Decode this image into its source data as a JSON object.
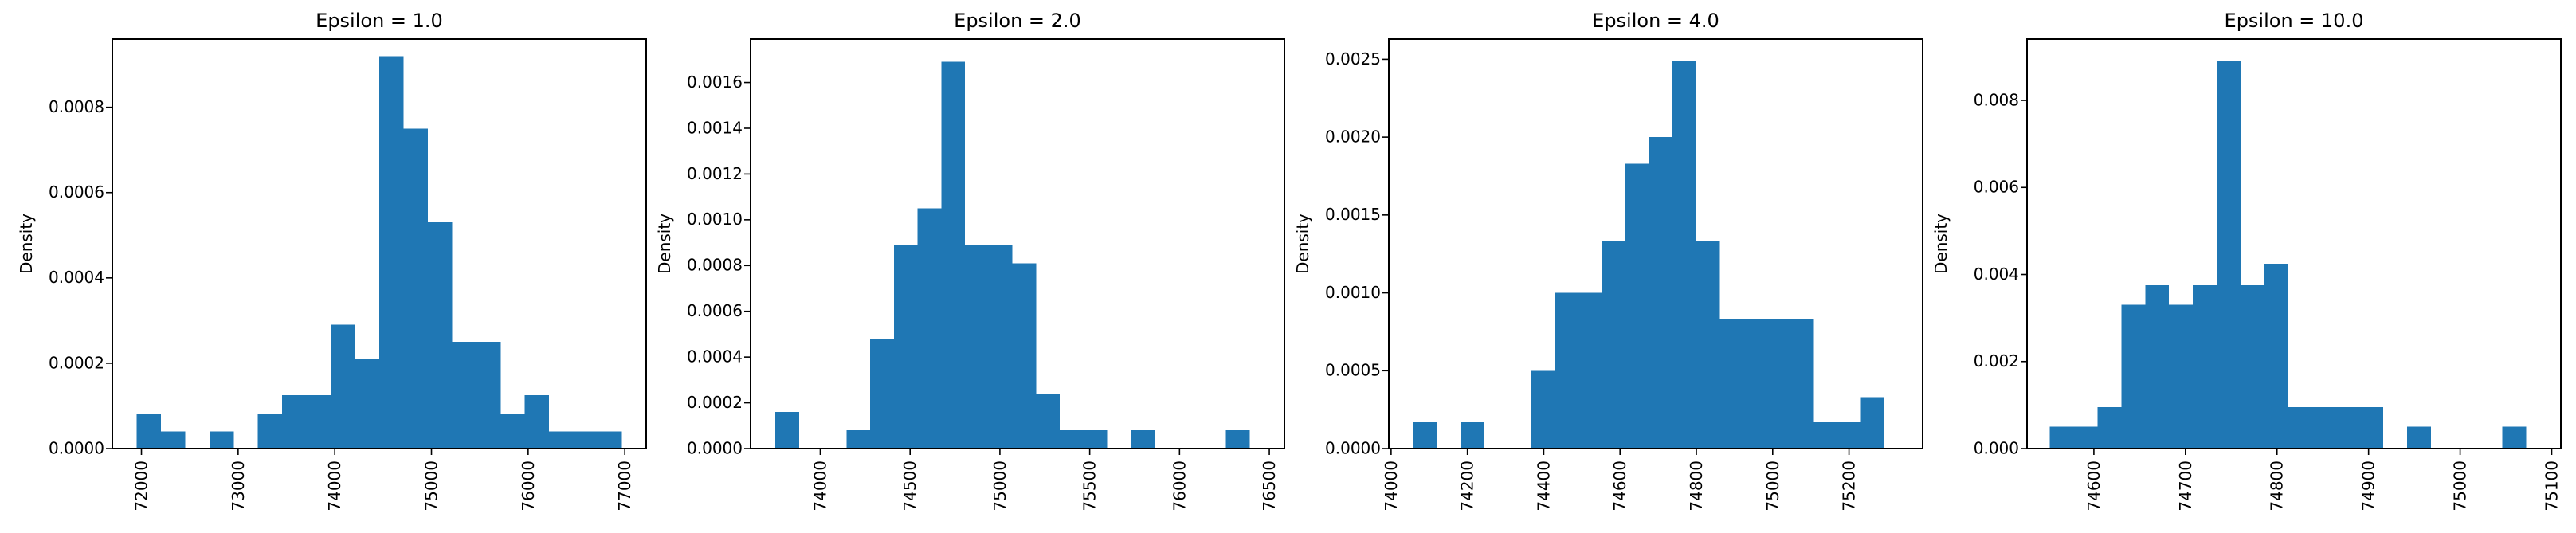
{
  "figure": {
    "background": "#ffffff",
    "bar_color": "#1f77b4",
    "axis_color": "#000000",
    "text_color": "#000000"
  },
  "chart_data": [
    {
      "type": "bar",
      "title": "Epsilon = 1.0",
      "ylabel": "Density",
      "xlabel": "",
      "grid": false,
      "legend": null,
      "xlim": [
        71699,
        77221
      ],
      "ylim": [
        0,
        0.00096
      ],
      "xticks": [
        72000,
        73000,
        74000,
        75000,
        76000,
        77000
      ],
      "xtick_labels": [
        "72000",
        "73000",
        "74000",
        "75000",
        "76000",
        "77000"
      ],
      "yticks": [
        0.0,
        0.0002,
        0.0004,
        0.0006,
        0.0008
      ],
      "ytick_labels": [
        "0.0000",
        "0.0002",
        "0.0004",
        "0.0006",
        "0.0008"
      ],
      "bin_start": 71950,
      "bin_width": 251,
      "densities": [
        8e-05,
        4e-05,
        0,
        4e-05,
        0,
        8e-05,
        0.000125,
        0.000125,
        0.00029,
        0.00021,
        0.00092,
        0.00075,
        0.00053,
        0.00025,
        0.00025,
        8e-05,
        0.000125,
        4e-05,
        4e-05,
        4e-05
      ]
    },
    {
      "type": "bar",
      "title": "Epsilon = 2.0",
      "ylabel": "Density",
      "xlabel": "",
      "grid": false,
      "legend": null,
      "xlim": [
        73612,
        76584
      ],
      "ylim": [
        0,
        0.00179
      ],
      "xticks": [
        74000,
        74500,
        75000,
        75500,
        76000,
        76500
      ],
      "xtick_labels": [
        "74000",
        "74500",
        "75000",
        "75500",
        "76000",
        "76500"
      ],
      "yticks": [
        0.0,
        0.0002,
        0.0004,
        0.0006,
        0.0008,
        0.001,
        0.0012,
        0.0014,
        0.0016
      ],
      "ytick_labels": [
        "0.0000",
        "0.0002",
        "0.0004",
        "0.0006",
        "0.0008",
        "0.0010",
        "0.0012",
        "0.0014",
        "0.0016"
      ],
      "bin_start": 73750,
      "bin_width": 132,
      "densities": [
        0.00016,
        0,
        0,
        8e-05,
        0.00048,
        0.00089,
        0.00105,
        0.00169,
        0.00089,
        0.00089,
        0.00081,
        0.00024,
        8e-05,
        8e-05,
        0,
        8e-05,
        0,
        0,
        0,
        8e-05
      ]
    },
    {
      "type": "bar",
      "title": "Epsilon = 4.0",
      "ylabel": "Density",
      "xlabel": "",
      "grid": false,
      "legend": null,
      "xlim": [
        73994,
        75393
      ],
      "ylim": [
        0,
        0.00263
      ],
      "xticks": [
        74000,
        74200,
        74400,
        74600,
        74800,
        75000,
        75200
      ],
      "xtick_labels": [
        "74000",
        "74200",
        "74400",
        "74600",
        "74800",
        "75000",
        "75200"
      ],
      "yticks": [
        0.0,
        0.0005,
        0.001,
        0.0015,
        0.002,
        0.0025
      ],
      "ytick_labels": [
        "0.0000",
        "0.0005",
        "0.0010",
        "0.0015",
        "0.0020",
        "0.0025"
      ],
      "bin_start": 74059,
      "bin_width": 61.7,
      "densities": [
        0.00017,
        0,
        0.00017,
        0,
        0,
        0.0005,
        0.001,
        0.001,
        0.00133,
        0.00183,
        0.002,
        0.00249,
        0.00133,
        0.00083,
        0.00083,
        0.00083,
        0.00083,
        0.00017,
        0.00017,
        0.00033
      ]
    },
    {
      "type": "bar",
      "title": "Epsilon = 10.0",
      "ylabel": "Density",
      "xlabel": "",
      "grid": false,
      "legend": null,
      "xlim": [
        74527,
        75110
      ],
      "ylim": [
        0,
        0.00941
      ],
      "xticks": [
        74600,
        74700,
        74800,
        74900,
        75000,
        75100
      ],
      "xtick_labels": [
        "74600",
        "74700",
        "74800",
        "74900",
        "75000",
        "75100"
      ],
      "yticks": [
        0.0,
        0.002,
        0.004,
        0.006,
        0.008
      ],
      "ytick_labels": [
        "0.000",
        "0.002",
        "0.004",
        "0.006",
        "0.008"
      ],
      "bin_start": 74552,
      "bin_width": 26,
      "densities": [
        0.0005,
        0.0005,
        0.00095,
        0.0033,
        0.00375,
        0.0033,
        0.00375,
        0.0089,
        0.00375,
        0.00425,
        0.00095,
        0.00095,
        0.00095,
        0.00095,
        0,
        0.0005,
        0,
        0,
        0,
        0.0005
      ]
    }
  ]
}
